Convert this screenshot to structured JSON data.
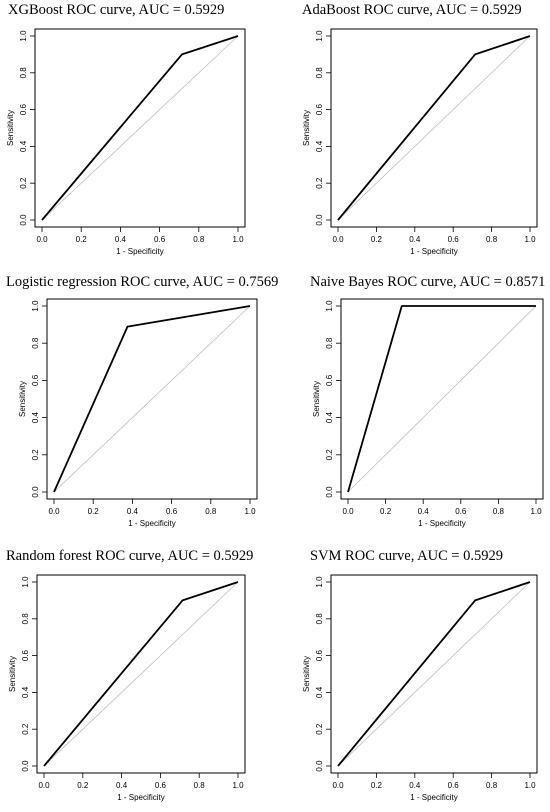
{
  "chart_data": [
    {
      "type": "line",
      "title": "XGBoost ROC curve, AUC = 0.5929",
      "xlabel": "1 - Specificity",
      "ylabel": "Sensitivity",
      "xlim": [
        0,
        1
      ],
      "ylim": [
        0,
        1
      ],
      "ticks": [
        "0.0",
        "0.2",
        "0.4",
        "0.6",
        "0.8",
        "1.0"
      ],
      "grid": false,
      "series": [
        {
          "x": [
            0,
            0.714,
            1
          ],
          "y": [
            0,
            0.9,
            1
          ]
        },
        {
          "x": [
            0,
            1
          ],
          "y": [
            0,
            1
          ]
        }
      ]
    },
    {
      "type": "line",
      "title": "AdaBoost ROC curve, AUC = 0.5929",
      "xlabel": "1 - Specificity",
      "ylabel": "Sensitivity",
      "xlim": [
        0,
        1
      ],
      "ylim": [
        0,
        1
      ],
      "ticks": [
        "0.0",
        "0.2",
        "0.4",
        "0.6",
        "0.8",
        "1.0"
      ],
      "grid": false,
      "series": [
        {
          "x": [
            0,
            0.714,
            1
          ],
          "y": [
            0,
            0.9,
            1
          ]
        },
        {
          "x": [
            0,
            1
          ],
          "y": [
            0,
            1
          ]
        }
      ]
    },
    {
      "type": "line",
      "title": "Logistic regression ROC curve, AUC = 0.7569",
      "xlabel": "1 - Specificity",
      "ylabel": "Sensitivity",
      "xlim": [
        0,
        1
      ],
      "ylim": [
        0,
        1
      ],
      "ticks": [
        "0.0",
        "0.2",
        "0.4",
        "0.6",
        "0.8",
        "1.0"
      ],
      "grid": false,
      "series": [
        {
          "x": [
            0,
            0.375,
            1
          ],
          "y": [
            0,
            0.889,
            1
          ]
        },
        {
          "x": [
            0,
            1
          ],
          "y": [
            0,
            1
          ]
        }
      ]
    },
    {
      "type": "line",
      "title": "Naive Bayes ROC curve, AUC = 0.8571",
      "xlabel": "1 - Specificity",
      "ylabel": "Sensitivity",
      "xlim": [
        0,
        1
      ],
      "ylim": [
        0,
        1
      ],
      "ticks": [
        "0.0",
        "0.2",
        "0.4",
        "0.6",
        "0.8",
        "1.0"
      ],
      "grid": false,
      "series": [
        {
          "x": [
            0,
            0.286,
            1
          ],
          "y": [
            0,
            1,
            1
          ]
        },
        {
          "x": [
            0,
            1
          ],
          "y": [
            0,
            1
          ]
        }
      ]
    },
    {
      "type": "line",
      "title": "Random forest ROC curve, AUC = 0.5929",
      "xlabel": "1 - Specificity",
      "ylabel": "Sensitivity",
      "xlim": [
        0,
        1
      ],
      "ylim": [
        0,
        1
      ],
      "ticks": [
        "0.0",
        "0.2",
        "0.4",
        "0.6",
        "0.8",
        "1.0"
      ],
      "grid": false,
      "series": [
        {
          "x": [
            0,
            0.714,
            1
          ],
          "y": [
            0,
            0.9,
            1
          ]
        },
        {
          "x": [
            0,
            1
          ],
          "y": [
            0,
            1
          ]
        }
      ]
    },
    {
      "type": "line",
      "title": "SVM ROC curve, AUC = 0.5929",
      "xlabel": "1 - Specificity",
      "ylabel": "Sensitivity",
      "xlim": [
        0,
        1
      ],
      "ylim": [
        0,
        1
      ],
      "ticks": [
        "0.0",
        "0.2",
        "0.4",
        "0.6",
        "0.8",
        "1.0"
      ],
      "grid": false,
      "series": [
        {
          "x": [
            0,
            0.714,
            1
          ],
          "y": [
            0,
            0.9,
            1
          ]
        },
        {
          "x": [
            0,
            1
          ],
          "y": [
            0,
            1
          ]
        }
      ]
    }
  ],
  "colors": {
    "roc_line": "#000000",
    "reference_line": "#bdbdbd",
    "axis": "#000000"
  }
}
